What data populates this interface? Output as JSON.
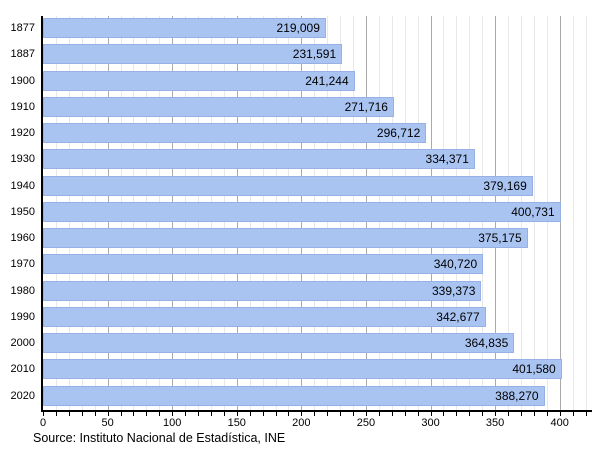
{
  "chart_data": {
    "type": "bar",
    "orientation": "horizontal",
    "title": "",
    "xlabel": "",
    "ylabel": "",
    "categories": [
      "1877",
      "1887",
      "1900",
      "1910",
      "1920",
      "1930",
      "1940",
      "1950",
      "1960",
      "1970",
      "1980",
      "1990",
      "2000",
      "2010",
      "2020"
    ],
    "values": [
      219009,
      231591,
      241244,
      271716,
      296712,
      334371,
      379169,
      400731,
      375175,
      340720,
      339373,
      342677,
      364835,
      401580,
      388270
    ],
    "value_labels": [
      "219,009",
      "231,591",
      "241,244",
      "271,716",
      "296,712",
      "334,371",
      "379,169",
      "400,731",
      "375,175",
      "340,720",
      "339,373",
      "342,677",
      "364,835",
      "401,580",
      "388,270"
    ],
    "x_axis": {
      "unit_divisor": 1000,
      "xlim": [
        0,
        425
      ],
      "tick_labels": [
        0,
        50,
        100,
        150,
        200,
        250,
        300,
        350,
        400
      ],
      "minor_step": 10,
      "major_step": 50,
      "max_tick": 420
    },
    "grid": "vertical",
    "legend_position": "none",
    "colors": {
      "bar_fill": "#aac4f2",
      "bar_border": "#97b1e6",
      "grid_minor": "#e8e8e8",
      "grid_major": "#aaaaaa",
      "axis": "#000000",
      "text": "#000000"
    }
  },
  "footer": {
    "source": "Source: Instituto Nacional de Estadística, INE"
  }
}
